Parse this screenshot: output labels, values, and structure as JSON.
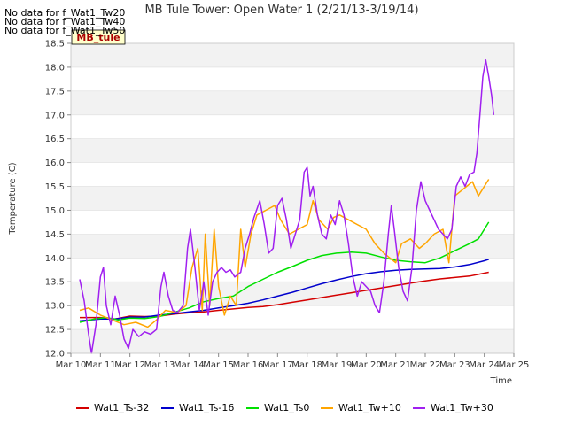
{
  "chart_data": {
    "type": "line",
    "title": "MB Tule Tower: Open Water 1 (2/21/13-3/19/14)",
    "xlabel": "Time",
    "ylabel": "Temperature (C)",
    "xlim": [
      10,
      25
    ],
    "ylim": [
      12.0,
      18.5
    ],
    "x_tick_labels": [
      "Mar 10",
      "Mar 11",
      "Mar 12",
      "Mar 13",
      "Mar 14",
      "Mar 15",
      "Mar 16",
      "Mar 17",
      "Mar 18",
      "Mar 19",
      "Mar 20",
      "Mar 21",
      "Mar 22",
      "Mar 23",
      "Mar 24",
      "Mar 25"
    ],
    "y_tick_labels": [
      "12.0",
      "12.5",
      "13.0",
      "13.5",
      "14.0",
      "14.5",
      "15.0",
      "15.5",
      "16.0",
      "16.5",
      "17.0",
      "17.5",
      "18.0",
      "18.5"
    ],
    "grid": "horizontal bands",
    "legend_position": "bottom",
    "no_data_messages": [
      "No data for f_Wat1_Tw20",
      "No data for f_Wat1_Tw40",
      "No data for f_Wat1_Tw50"
    ],
    "badge": "MB_tule",
    "series": [
      {
        "name": "Wat1_Ts-32",
        "color": "#d40000",
        "points": [
          [
            10.3,
            12.75
          ],
          [
            11,
            12.75
          ],
          [
            11.5,
            12.72
          ],
          [
            12,
            12.78
          ],
          [
            12.5,
            12.77
          ],
          [
            13,
            12.78
          ],
          [
            13.5,
            12.82
          ],
          [
            14,
            12.85
          ],
          [
            14.5,
            12.87
          ],
          [
            15,
            12.9
          ],
          [
            15.5,
            12.93
          ],
          [
            16,
            12.96
          ],
          [
            16.5,
            12.98
          ],
          [
            17,
            13.02
          ],
          [
            17.5,
            13.07
          ],
          [
            18,
            13.12
          ],
          [
            18.5,
            13.17
          ],
          [
            19,
            13.22
          ],
          [
            19.5,
            13.27
          ],
          [
            20,
            13.32
          ],
          [
            20.5,
            13.37
          ],
          [
            21,
            13.42
          ],
          [
            21.5,
            13.47
          ],
          [
            22,
            13.52
          ],
          [
            22.5,
            13.56
          ],
          [
            23,
            13.59
          ],
          [
            23.5,
            13.62
          ],
          [
            24,
            13.68
          ],
          [
            24.15,
            13.7
          ]
        ]
      },
      {
        "name": "Wat1_Ts-16",
        "color": "#0000cc",
        "points": [
          [
            10.3,
            12.68
          ],
          [
            11,
            12.72
          ],
          [
            11.5,
            12.72
          ],
          [
            12,
            12.76
          ],
          [
            12.5,
            12.76
          ],
          [
            13,
            12.8
          ],
          [
            13.5,
            12.83
          ],
          [
            14,
            12.87
          ],
          [
            14.5,
            12.9
          ],
          [
            15,
            12.95
          ],
          [
            15.5,
            13.0
          ],
          [
            16,
            13.05
          ],
          [
            16.5,
            13.12
          ],
          [
            17,
            13.2
          ],
          [
            17.5,
            13.28
          ],
          [
            18,
            13.37
          ],
          [
            18.5,
            13.46
          ],
          [
            19,
            13.54
          ],
          [
            19.5,
            13.61
          ],
          [
            20,
            13.67
          ],
          [
            20.5,
            13.71
          ],
          [
            21,
            13.74
          ],
          [
            21.5,
            13.76
          ],
          [
            22,
            13.77
          ],
          [
            22.5,
            13.78
          ],
          [
            23,
            13.81
          ],
          [
            23.5,
            13.86
          ],
          [
            24,
            13.94
          ],
          [
            24.15,
            13.97
          ]
        ]
      },
      {
        "name": "Wat1_Ts0",
        "color": "#00e000",
        "points": [
          [
            10.3,
            12.65
          ],
          [
            10.8,
            12.72
          ],
          [
            11.2,
            12.75
          ],
          [
            11.6,
            12.7
          ],
          [
            12,
            12.74
          ],
          [
            12.5,
            12.73
          ],
          [
            13,
            12.77
          ],
          [
            13.5,
            12.86
          ],
          [
            14,
            12.95
          ],
          [
            14.5,
            13.08
          ],
          [
            15,
            13.15
          ],
          [
            15.5,
            13.2
          ],
          [
            16,
            13.4
          ],
          [
            16.5,
            13.55
          ],
          [
            17,
            13.7
          ],
          [
            17.5,
            13.82
          ],
          [
            18,
            13.95
          ],
          [
            18.5,
            14.05
          ],
          [
            19,
            14.1
          ],
          [
            19.5,
            14.12
          ],
          [
            20,
            14.1
          ],
          [
            20.5,
            14.02
          ],
          [
            21,
            13.95
          ],
          [
            21.5,
            13.92
          ],
          [
            22,
            13.9
          ],
          [
            22.5,
            14.0
          ],
          [
            23,
            14.15
          ],
          [
            23.5,
            14.3
          ],
          [
            23.8,
            14.4
          ],
          [
            24,
            14.6
          ],
          [
            24.15,
            14.75
          ]
        ]
      },
      {
        "name": "Wat1_Tw+10",
        "color": "#ffa500",
        "points": [
          [
            10.3,
            12.9
          ],
          [
            10.6,
            12.95
          ],
          [
            11,
            12.8
          ],
          [
            11.4,
            12.7
          ],
          [
            11.8,
            12.6
          ],
          [
            12.2,
            12.65
          ],
          [
            12.6,
            12.55
          ],
          [
            12.9,
            12.7
          ],
          [
            13.2,
            12.9
          ],
          [
            13.6,
            12.85
          ],
          [
            13.9,
            13.0
          ],
          [
            14.1,
            13.8
          ],
          [
            14.3,
            14.2
          ],
          [
            14.45,
            12.9
          ],
          [
            14.55,
            14.5
          ],
          [
            14.7,
            13.0
          ],
          [
            14.85,
            14.6
          ],
          [
            15,
            13.4
          ],
          [
            15.2,
            12.8
          ],
          [
            15.4,
            13.2
          ],
          [
            15.6,
            13.0
          ],
          [
            15.75,
            14.6
          ],
          [
            15.9,
            13.8
          ],
          [
            16.1,
            14.5
          ],
          [
            16.3,
            14.9
          ],
          [
            16.6,
            15.0
          ],
          [
            16.9,
            15.1
          ],
          [
            17.1,
            14.8
          ],
          [
            17.4,
            14.5
          ],
          [
            17.7,
            14.6
          ],
          [
            18.0,
            14.7
          ],
          [
            18.2,
            15.2
          ],
          [
            18.4,
            14.8
          ],
          [
            18.7,
            14.6
          ],
          [
            18.9,
            14.85
          ],
          [
            19.1,
            14.9
          ],
          [
            19.4,
            14.8
          ],
          [
            19.7,
            14.7
          ],
          [
            20.0,
            14.6
          ],
          [
            20.3,
            14.3
          ],
          [
            20.6,
            14.1
          ],
          [
            20.8,
            14.0
          ],
          [
            21.0,
            13.9
          ],
          [
            21.2,
            14.3
          ],
          [
            21.5,
            14.4
          ],
          [
            21.8,
            14.2
          ],
          [
            22.0,
            14.3
          ],
          [
            22.3,
            14.5
          ],
          [
            22.6,
            14.6
          ],
          [
            22.8,
            13.9
          ],
          [
            23.0,
            15.3
          ],
          [
            23.2,
            15.4
          ],
          [
            23.4,
            15.5
          ],
          [
            23.6,
            15.6
          ],
          [
            23.8,
            15.3
          ],
          [
            24.0,
            15.5
          ],
          [
            24.15,
            15.65
          ]
        ]
      },
      {
        "name": "Wat1_Tw+30",
        "color": "#a020f0",
        "points": [
          [
            10.3,
            13.55
          ],
          [
            10.45,
            13.1
          ],
          [
            10.6,
            12.4
          ],
          [
            10.7,
            12.0
          ],
          [
            10.85,
            12.6
          ],
          [
            11.0,
            13.6
          ],
          [
            11.1,
            13.8
          ],
          [
            11.2,
            13.0
          ],
          [
            11.35,
            12.6
          ],
          [
            11.5,
            13.2
          ],
          [
            11.65,
            12.8
          ],
          [
            11.8,
            12.3
          ],
          [
            11.95,
            12.1
          ],
          [
            12.1,
            12.5
          ],
          [
            12.3,
            12.35
          ],
          [
            12.5,
            12.45
          ],
          [
            12.7,
            12.4
          ],
          [
            12.9,
            12.5
          ],
          [
            13.05,
            13.4
          ],
          [
            13.15,
            13.7
          ],
          [
            13.3,
            13.2
          ],
          [
            13.45,
            12.9
          ],
          [
            13.6,
            12.85
          ],
          [
            13.8,
            13.0
          ],
          [
            13.95,
            14.2
          ],
          [
            14.05,
            14.6
          ],
          [
            14.2,
            13.8
          ],
          [
            14.35,
            12.9
          ],
          [
            14.5,
            13.5
          ],
          [
            14.65,
            12.8
          ],
          [
            14.8,
            13.5
          ],
          [
            14.95,
            13.7
          ],
          [
            15.1,
            13.8
          ],
          [
            15.25,
            13.7
          ],
          [
            15.4,
            13.75
          ],
          [
            15.55,
            13.6
          ],
          [
            15.75,
            13.7
          ],
          [
            15.9,
            14.2
          ],
          [
            16.05,
            14.5
          ],
          [
            16.2,
            14.85
          ],
          [
            16.4,
            15.2
          ],
          [
            16.55,
            14.7
          ],
          [
            16.7,
            14.1
          ],
          [
            16.85,
            14.2
          ],
          [
            17.0,
            15.1
          ],
          [
            17.15,
            15.25
          ],
          [
            17.3,
            14.8
          ],
          [
            17.45,
            14.2
          ],
          [
            17.6,
            14.5
          ],
          [
            17.75,
            14.8
          ],
          [
            17.9,
            15.8
          ],
          [
            18.0,
            15.9
          ],
          [
            18.1,
            15.3
          ],
          [
            18.2,
            15.5
          ],
          [
            18.35,
            14.9
          ],
          [
            18.5,
            14.5
          ],
          [
            18.65,
            14.4
          ],
          [
            18.8,
            14.9
          ],
          [
            18.95,
            14.7
          ],
          [
            19.1,
            15.2
          ],
          [
            19.25,
            14.9
          ],
          [
            19.4,
            14.3
          ],
          [
            19.55,
            13.6
          ],
          [
            19.7,
            13.2
          ],
          [
            19.85,
            13.5
          ],
          [
            20.0,
            13.4
          ],
          [
            20.15,
            13.3
          ],
          [
            20.3,
            13.0
          ],
          [
            20.45,
            12.85
          ],
          [
            20.6,
            13.5
          ],
          [
            20.75,
            14.5
          ],
          [
            20.85,
            15.1
          ],
          [
            20.95,
            14.6
          ],
          [
            21.1,
            13.8
          ],
          [
            21.25,
            13.3
          ],
          [
            21.4,
            13.1
          ],
          [
            21.55,
            13.8
          ],
          [
            21.7,
            15.0
          ],
          [
            21.85,
            15.6
          ],
          [
            22.0,
            15.2
          ],
          [
            22.15,
            15.0
          ],
          [
            22.3,
            14.8
          ],
          [
            22.45,
            14.6
          ],
          [
            22.6,
            14.5
          ],
          [
            22.75,
            14.4
          ],
          [
            22.9,
            14.6
          ],
          [
            23.05,
            15.5
          ],
          [
            23.2,
            15.7
          ],
          [
            23.35,
            15.5
          ],
          [
            23.5,
            15.75
          ],
          [
            23.65,
            15.8
          ],
          [
            23.75,
            16.2
          ],
          [
            23.85,
            17.0
          ],
          [
            23.95,
            17.8
          ],
          [
            24.05,
            18.15
          ],
          [
            24.15,
            17.8
          ],
          [
            24.25,
            17.4
          ],
          [
            24.32,
            17.0
          ]
        ]
      }
    ]
  }
}
